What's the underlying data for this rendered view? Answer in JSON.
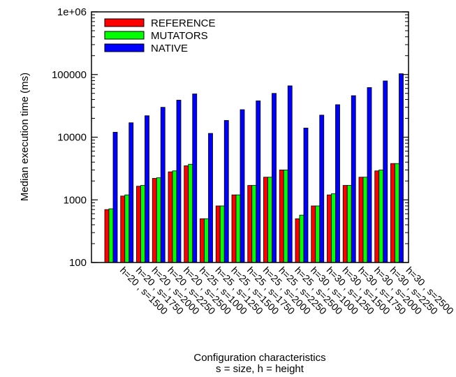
{
  "chart_data": {
    "type": "bar",
    "ylabel": "Median execution time (ms)",
    "xlabel": "Configuration characteristics",
    "xlabel_sub": "s = size, h = height",
    "yscale": "log",
    "ylim": [
      100,
      1000000
    ],
    "yticks": [
      {
        "value": 100,
        "label": "100"
      },
      {
        "value": 1000,
        "label": "1000"
      },
      {
        "value": 10000,
        "label": "10000"
      },
      {
        "value": 100000,
        "label": "100000"
      },
      {
        "value": 1000000,
        "label": "1e+06"
      }
    ],
    "grid": false,
    "legend_position": "top-left",
    "categories": [
      "h=20 , s=1500",
      "h=20 , s=1750",
      "h=20 , s=2000",
      "h=20 , s=2250",
      "h=20 , s=2500",
      "h=25 , s=1000",
      "h=25 , s=1250",
      "h=25 , s=1500",
      "h=25 , s=1750",
      "h=25 , s=2000",
      "h=25 , s=2250",
      "h=25 , s=2500",
      "h=30 , s=1000",
      "h=30 , s=1250",
      "h=30 , s=1500",
      "h=30 , s=1750",
      "h=30 , s=2000",
      "h=30 , s=2250",
      "h=30 , s=2500"
    ],
    "series": [
      {
        "name": "REFERENCE",
        "color": "#ff0000",
        "values": [
          700,
          1150,
          1650,
          2200,
          2800,
          3500,
          500,
          800,
          1200,
          1700,
          2300,
          3000,
          500,
          800,
          1200,
          1700,
          2300,
          2900,
          3800
        ]
      },
      {
        "name": "MUTATORS",
        "color": "#00ff00",
        "values": [
          720,
          1200,
          1700,
          2250,
          2900,
          3700,
          500,
          800,
          1200,
          1700,
          2300,
          3000,
          570,
          800,
          1250,
          1700,
          2300,
          3000,
          3800
        ]
      },
      {
        "name": "NATIVE",
        "color": "#0000ff",
        "values": [
          12000,
          17000,
          22000,
          30000,
          39000,
          49000,
          11500,
          18500,
          27500,
          38000,
          50000,
          66000,
          14000,
          22500,
          33000,
          46000,
          62000,
          79000,
          103000
        ]
      }
    ]
  }
}
